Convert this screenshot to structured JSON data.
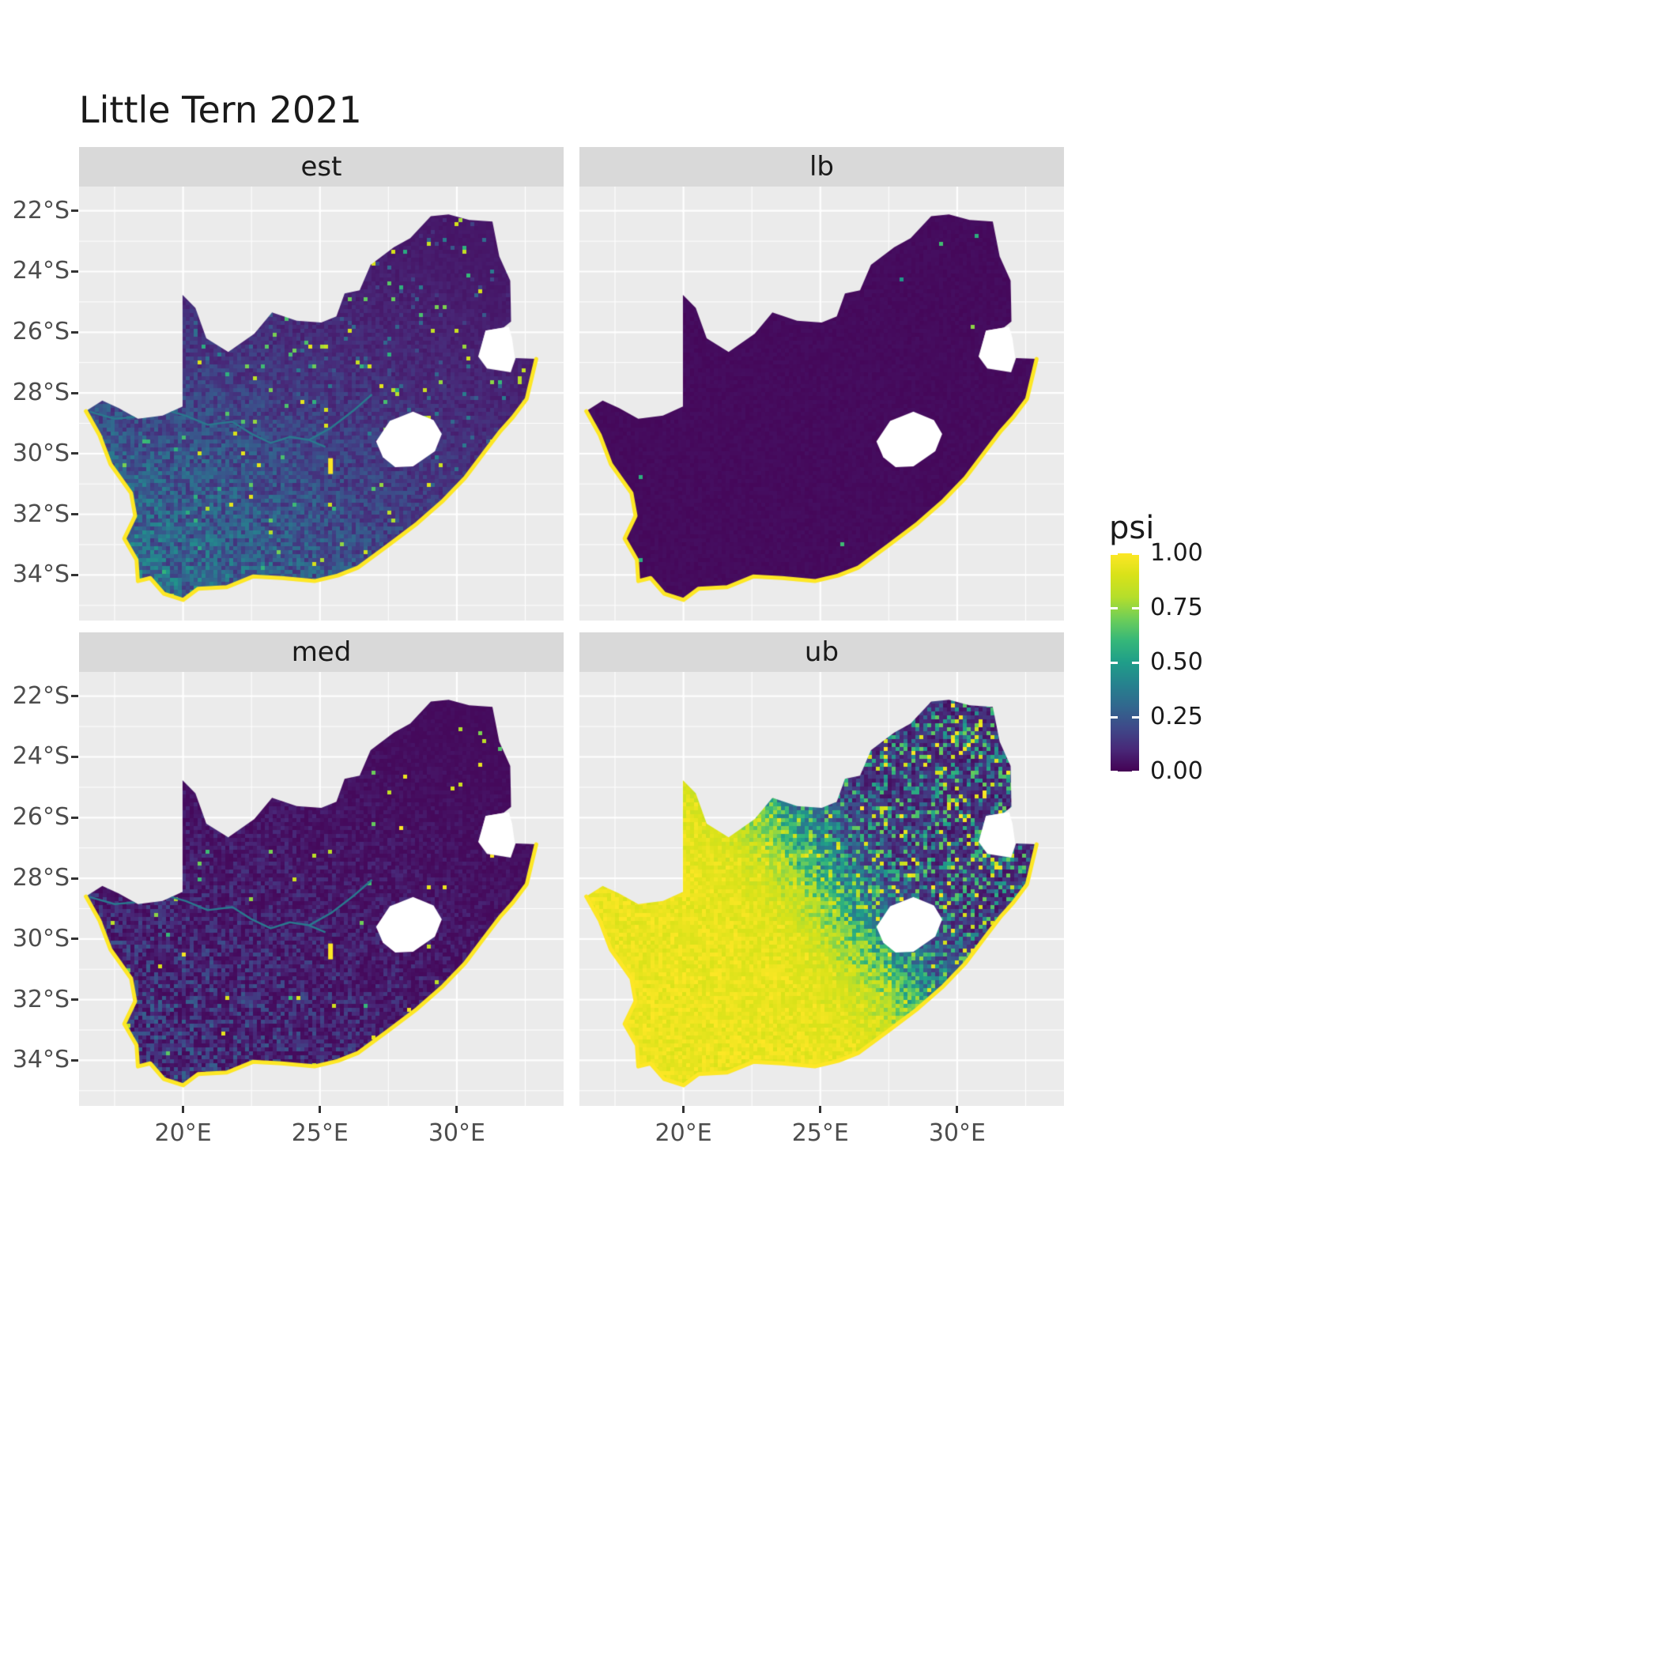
{
  "title": "Little Tern 2021",
  "facets": [
    {
      "label": "est",
      "pattern": "moderate_southwest"
    },
    {
      "label": "lb",
      "pattern": "uniform_near_zero"
    },
    {
      "label": "med",
      "pattern": "sparse_southwest"
    },
    {
      "label": "ub",
      "pattern": "high_west"
    }
  ],
  "axes": {
    "x": {
      "ticks": [
        {
          "label": "20°E",
          "lon": 20
        },
        {
          "label": "25°E",
          "lon": 25
        },
        {
          "label": "30°E",
          "lon": 30
        }
      ]
    },
    "y": {
      "ticks": [
        {
          "label": "22°S",
          "lat": 22
        },
        {
          "label": "24°S",
          "lat": 24
        },
        {
          "label": "26°S",
          "lat": 26
        },
        {
          "label": "28°S",
          "lat": 28
        },
        {
          "label": "30°S",
          "lat": 30
        },
        {
          "label": "32°S",
          "lat": 32
        },
        {
          "label": "34°S",
          "lat": 34
        }
      ]
    }
  },
  "legend": {
    "title": "psi",
    "ticks": [
      {
        "label": "1.00",
        "value": 1.0
      },
      {
        "label": "0.75",
        "value": 0.75
      },
      {
        "label": "0.50",
        "value": 0.5
      },
      {
        "label": "0.25",
        "value": 0.25
      },
      {
        "label": "0.00",
        "value": 0.0
      }
    ]
  },
  "colors": {
    "panel_bg": "#EBEBEB",
    "strip_bg": "#D9D9D9",
    "grid": "#FFFFFF",
    "axis_text": "#4D4D4D",
    "coast_highlight": "#FDE725",
    "hole_fill": "#FFFFFF",
    "river": "#2A788E",
    "viridis": [
      "#440154",
      "#482878",
      "#3e4989",
      "#31688e",
      "#26828e",
      "#1f9e89",
      "#35b779",
      "#6ece58",
      "#b5de2b",
      "#d8e219",
      "#fde725"
    ]
  },
  "chart_data": {
    "type": "heatmap",
    "title": "Little Tern 2021",
    "region": "South Africa (raster occupancy map, Lesotho and Eswatini shown as holes)",
    "facets": [
      "est",
      "lb",
      "med",
      "ub"
    ],
    "x": {
      "label": "longitude",
      "unit": "°E",
      "ticks": [
        20,
        25,
        30
      ],
      "range": [
        16.2,
        33.9
      ]
    },
    "y": {
      "label": "latitude",
      "unit": "°S",
      "ticks": [
        22,
        24,
        26,
        28,
        30,
        32,
        34
      ],
      "range": [
        -35.5,
        -21.2
      ]
    },
    "value": {
      "name": "psi",
      "range": [
        0,
        1
      ],
      "colormap": "viridis",
      "legend_breaks": [
        0.0,
        0.25,
        0.5,
        0.75,
        1.0
      ]
    },
    "facet_summaries": [
      {
        "facet": "est",
        "approx_mean_psi": 0.15,
        "description": "Near-zero psi (dark purple) over north and east; moderate speckled psi ~0.2-0.6 (teal/green) over southwest interior; psi ~1 (yellow) rim along the entire coastline; teal Orange/Vaal river trace visible."
      },
      {
        "facet": "lb",
        "approx_mean_psi": 0.02,
        "description": "Near-zero psi everywhere (uniform dark purple) with only a thin yellow high-psi coastal rim and a rare isolated green speckle."
      },
      {
        "facet": "med",
        "approx_mean_psi": 0.08,
        "description": "Mostly near-zero psi; sparse moderate speckles ~0.2-0.5 in the southwest interior; yellow high-psi coastal rim; teal river trace visible."
      },
      {
        "facet": "ub",
        "approx_mean_psi": 0.55,
        "description": "psi ~1 (solid yellow) across the western and southern interior including the 20°E northern strip; mixed low/moderate psi with many yellow speckles over the northeast; yellow coastline."
      }
    ],
    "layout": {
      "grid": "2x2 facet grid",
      "legend_position": "right",
      "background_grid": "white major gridlines on grey panels"
    }
  }
}
